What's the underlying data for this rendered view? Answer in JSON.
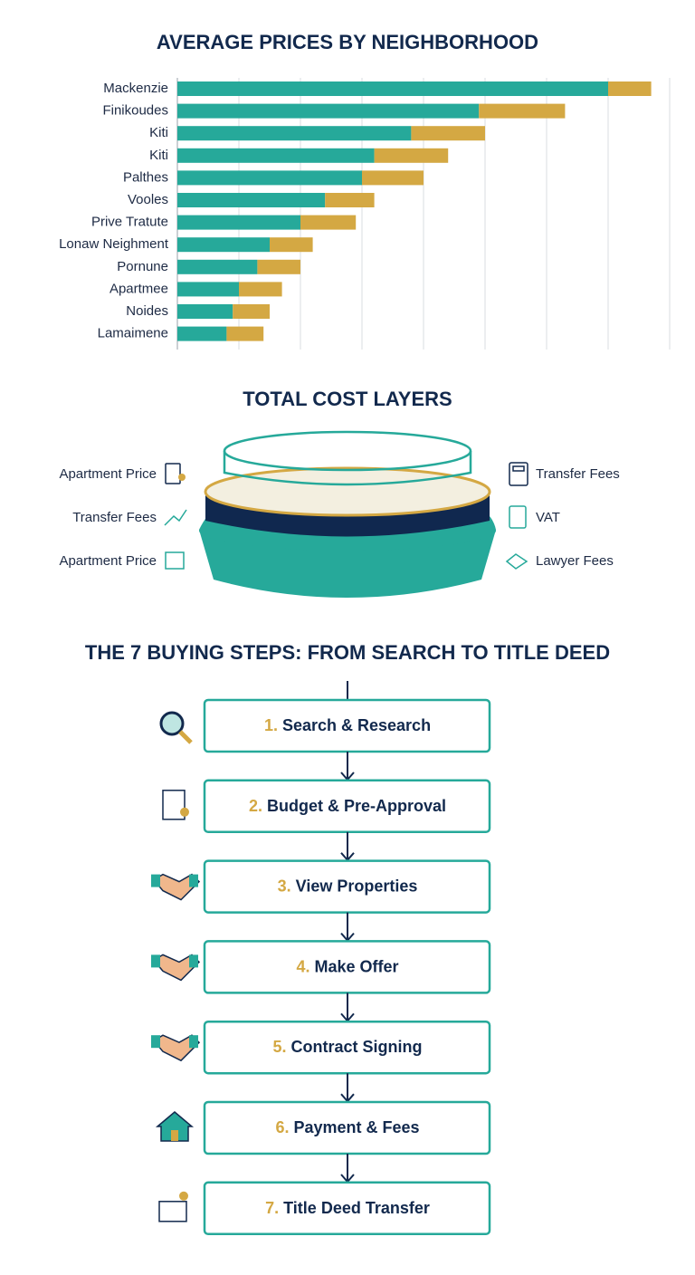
{
  "chart_data": {
    "type": "stacked_barh",
    "title": "AVERAGE PRICES BY NEIGHBORHOOD",
    "categories": [
      "Mackenzie",
      "Finikoudes",
      "Kiti",
      "Kiti",
      "Palthes",
      "Vooles",
      "Prive Tratute",
      "Lonaw Neighment",
      "Pornune",
      "Apartmee",
      "Noides",
      "Lamaimene"
    ],
    "series": [
      {
        "color": "#26a99a",
        "values": [
          7.0,
          4.9,
          3.8,
          3.2,
          3.0,
          2.4,
          2.0,
          1.5,
          1.3,
          1.0,
          0.9,
          0.8
        ]
      },
      {
        "color": "#d4a843",
        "values": [
          0.7,
          1.4,
          1.2,
          1.2,
          1.0,
          0.8,
          0.9,
          0.7,
          0.7,
          0.7,
          0.6,
          0.6
        ]
      }
    ],
    "xlim": [
      0,
      8
    ],
    "xticks": [
      0,
      1,
      2,
      3,
      4,
      5,
      6,
      7,
      8
    ],
    "grid": true
  },
  "cost_layers": {
    "title": "TOTAL COST LAYERS",
    "left": [
      "Apartment Price",
      "Transfer Fees",
      "Apartment Price"
    ],
    "right": [
      "Transfer Fees",
      "VAT",
      "Lawyer Fees"
    ]
  },
  "steps": {
    "title": "THE 7 BUYING STEPS: FROM SEARCH TO TITLE DEED",
    "items": [
      {
        "number": "1.",
        "text": "Search & Research"
      },
      {
        "number": "2.",
        "text": "Budget & Pre-Approval"
      },
      {
        "number": "3.",
        "text": "View Properties"
      },
      {
        "number": "4.",
        "text": "Make Offer"
      },
      {
        "number": "5.",
        "text": "Contract Signing"
      },
      {
        "number": "6.",
        "text": "Payment & Fees"
      },
      {
        "number": "7.",
        "text": "Title Deed Transfer"
      }
    ]
  }
}
